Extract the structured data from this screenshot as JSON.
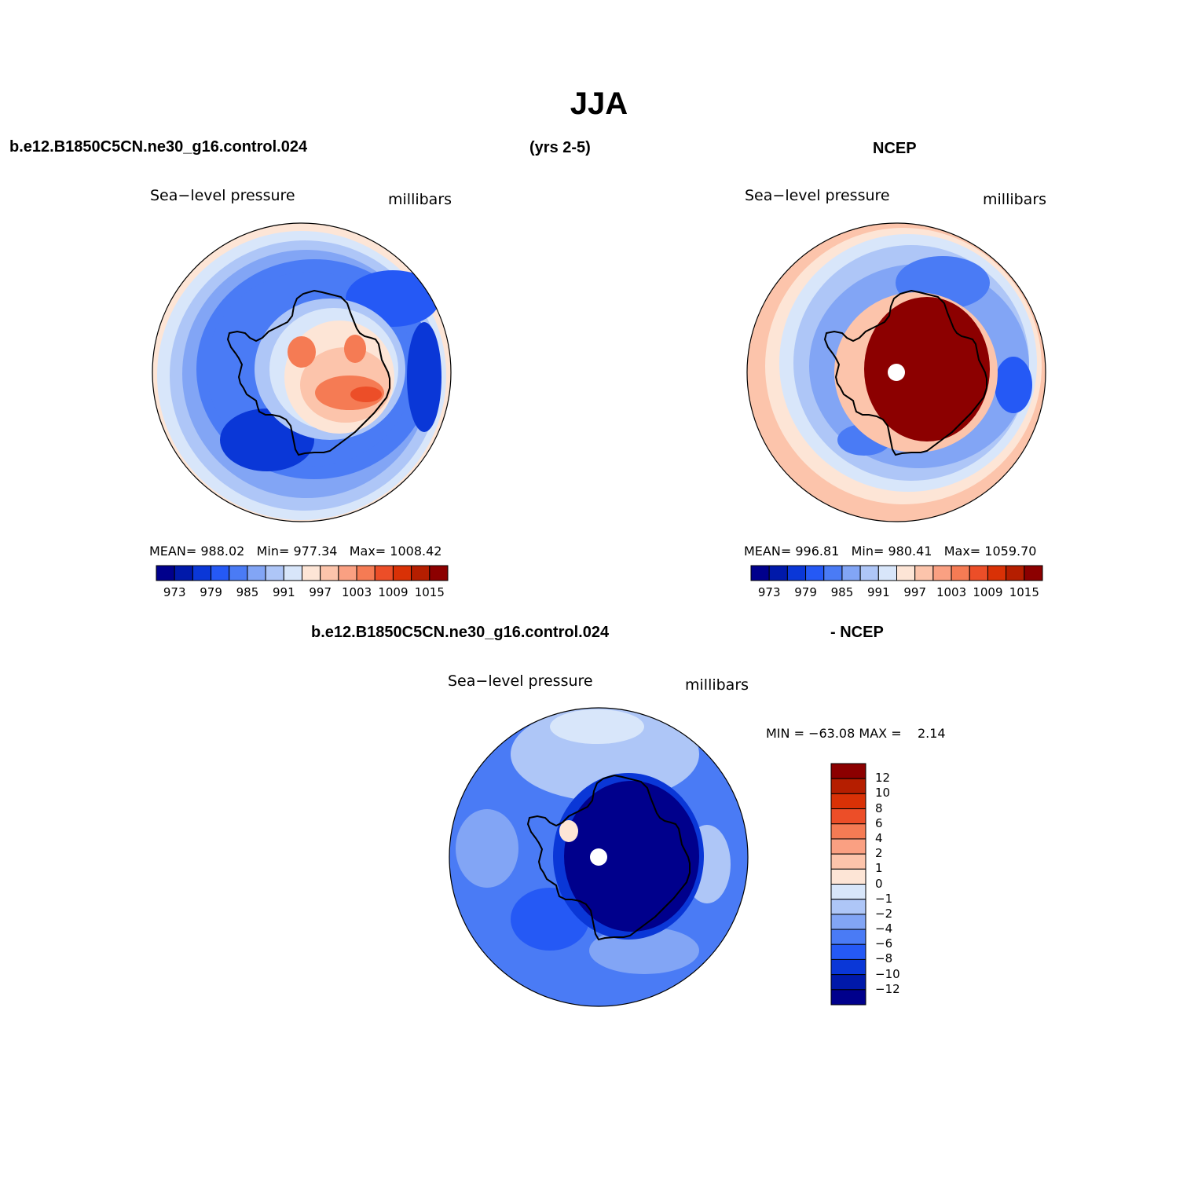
{
  "title": "JJA",
  "header": {
    "left": "b.e12.B1850C5CN.ne30_g16.control.024",
    "center": "(yrs 2-5)",
    "right": "NCEP"
  },
  "diff_header": {
    "left": "b.e12.B1850C5CN.ne30_g16.control.024",
    "right": "- NCEP"
  },
  "panels": {
    "model": {
      "variable": "Sea−level pressure",
      "units": "millibars",
      "stats": {
        "mean_label": "MEAN=",
        "mean": "988.02",
        "min_label": "Min=",
        "min": "977.34",
        "max_label": "Max=",
        "max": "1008.42"
      }
    },
    "obs": {
      "variable": "Sea−level pressure",
      "units": "millibars",
      "stats": {
        "mean_label": "MEAN=",
        "mean": "996.81",
        "min_label": "Min=",
        "min": "980.41",
        "max_label": "Max=",
        "max": "1059.70"
      }
    },
    "diff": {
      "variable": "Sea−level pressure",
      "units": "millibars",
      "stats": {
        "min_label": "MIN =",
        "min": "−63.08",
        "max_label": "MAX =",
        "max": "2.14"
      }
    }
  },
  "colorbar_main": {
    "ticks": [
      "973",
      "979",
      "985",
      "991",
      "997",
      "1003",
      "1009",
      "1015"
    ],
    "colors": [
      "#00008c",
      "#0019aa",
      "#0a37d7",
      "#2559f5",
      "#4a7bf5",
      "#82a5f5",
      "#aec6f7",
      "#d8e6fa",
      "#fde5d6",
      "#fcc4ab",
      "#faa082",
      "#f57b54",
      "#ec4e28",
      "#d93106",
      "#b51e00",
      "#8c0000"
    ]
  },
  "colorbar_diff": {
    "ticks": [
      "12",
      "10",
      "8",
      "6",
      "4",
      "2",
      "1",
      "0",
      "−1",
      "−2",
      "−4",
      "−6",
      "−8",
      "−10",
      "−12"
    ],
    "colors": [
      "#8c0000",
      "#b51e00",
      "#d93106",
      "#ec4e28",
      "#f57b54",
      "#faa082",
      "#fcc4ab",
      "#fde5d6",
      "#d8e6fa",
      "#aec6f7",
      "#82a5f5",
      "#4a7bf5",
      "#2559f5",
      "#0a37d7",
      "#0019aa",
      "#00008c"
    ]
  },
  "map_colors": {
    "outer_warm": "#fde5d6",
    "outer_warm2": "#fcc4ab",
    "pale_blue": "#d8e6fa",
    "light_blue": "#aec6f7",
    "mid_blue": "#82a5f5",
    "blue": "#4a7bf5",
    "strong_blue": "#2559f5",
    "deep_blue": "#0a37d7",
    "navy": "#0019aa",
    "darkest": "#00008c",
    "orange": "#f57b54",
    "red": "#ec4e28",
    "dark_red": "#8c0000"
  }
}
